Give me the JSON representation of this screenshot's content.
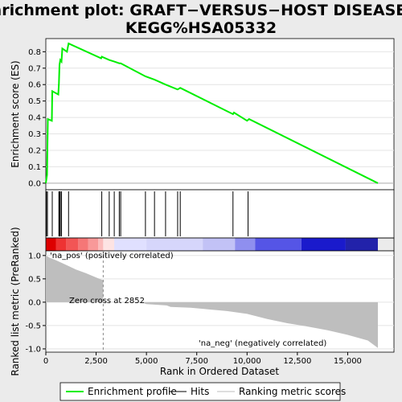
{
  "chart_data": {
    "type": "line",
    "title_line1": "Enrichment plot: GRAFT−VERSUS−HOST DISEASE%",
    "title_line2": "KEGG%HSA05332",
    "es_panel": {
      "ylabel": "Enrichment score (ES)",
      "ylim": [
        -0.04,
        0.88
      ],
      "yticks": [
        0.0,
        0.1,
        0.2,
        0.3,
        0.4,
        0.5,
        0.6,
        0.7,
        0.8
      ],
      "ytick_labels": [
        "0.0",
        "0.1",
        "0.2",
        "0.3",
        "0.4",
        "0.5",
        "0.6",
        "0.7",
        "0.8"
      ],
      "line_color": "#00ee00",
      "points": [
        [
          0,
          0.0
        ],
        [
          60,
          0.05
        ],
        [
          100,
          0.39
        ],
        [
          300,
          0.38
        ],
        [
          320,
          0.56
        ],
        [
          620,
          0.54
        ],
        [
          650,
          0.61
        ],
        [
          680,
          0.72
        ],
        [
          720,
          0.75
        ],
        [
          780,
          0.74
        ],
        [
          820,
          0.82
        ],
        [
          1050,
          0.8
        ],
        [
          1130,
          0.85
        ],
        [
          2750,
          0.76
        ],
        [
          2780,
          0.77
        ],
        [
          3150,
          0.75
        ],
        [
          3400,
          0.74
        ],
        [
          3650,
          0.73
        ],
        [
          3720,
          0.73
        ],
        [
          4950,
          0.65
        ],
        [
          5400,
          0.63
        ],
        [
          5950,
          0.6
        ],
        [
          6550,
          0.57
        ],
        [
          6680,
          0.58
        ],
        [
          9300,
          0.42
        ],
        [
          9350,
          0.43
        ],
        [
          10000,
          0.38
        ],
        [
          10100,
          0.39
        ],
        [
          16500,
          0.0
        ]
      ]
    },
    "hits": [
      30,
      80,
      320,
      650,
      680,
      720,
      780,
      1130,
      2780,
      3150,
      3400,
      3650,
      3720,
      4950,
      5400,
      5950,
      6550,
      6680,
      9300,
      10050
    ],
    "rank_panel": {
      "ylabel": "Ranked list metric (PreRanked)",
      "ylim": [
        -1.07,
        1.1
      ],
      "yticks": [
        1.0,
        0.5,
        0.0,
        -0.5,
        -1.0
      ],
      "ytick_labels": [
        "1.0",
        "0.5",
        "0.0",
        "-0.5",
        "-1.0"
      ],
      "fill_color": "#bebebe",
      "profile": [
        [
          0,
          1.0
        ],
        [
          200,
          0.95
        ],
        [
          500,
          0.9
        ],
        [
          1000,
          0.8
        ],
        [
          1500,
          0.7
        ],
        [
          2000,
          0.62
        ],
        [
          2500,
          0.53
        ],
        [
          2852,
          0.47
        ],
        [
          2853,
          0.0
        ],
        [
          4800,
          -0.01
        ],
        [
          5000,
          -0.04
        ],
        [
          6000,
          -0.07
        ],
        [
          6200,
          -0.1
        ],
        [
          7200,
          -0.12
        ],
        [
          8000,
          -0.15
        ],
        [
          9000,
          -0.19
        ],
        [
          10000,
          -0.25
        ],
        [
          11000,
          -0.36
        ],
        [
          12000,
          -0.45
        ],
        [
          13000,
          -0.52
        ],
        [
          14000,
          -0.6
        ],
        [
          15000,
          -0.7
        ],
        [
          16000,
          -0.82
        ],
        [
          16500,
          -0.98
        ]
      ],
      "zero_cross_label": "Zero cross at 2852",
      "zero_cross_x": 2852,
      "pos_label": "'na_pos' (positively correlated)",
      "neg_label": "'na_neg' (negatively correlated)",
      "pos_color": "#cc0000",
      "neg_color": "#0000cc"
    },
    "heat_segments": [
      {
        "from": 0,
        "to": 500,
        "color": "#dd0000"
      },
      {
        "from": 500,
        "to": 1000,
        "color": "#ee3333"
      },
      {
        "from": 1000,
        "to": 1600,
        "color": "#f25555"
      },
      {
        "from": 1600,
        "to": 2100,
        "color": "#f57777"
      },
      {
        "from": 2100,
        "to": 2600,
        "color": "#f89999"
      },
      {
        "from": 2600,
        "to": 2852,
        "color": "#fbbbbb"
      },
      {
        "from": 2852,
        "to": 3400,
        "color": "#fde3e3"
      },
      {
        "from": 3400,
        "to": 5000,
        "color": "#e0e0ff"
      },
      {
        "from": 5000,
        "to": 7800,
        "color": "#d6d6fb"
      },
      {
        "from": 7800,
        "to": 9400,
        "color": "#c2c2f6"
      },
      {
        "from": 9400,
        "to": 10400,
        "color": "#8f8fef"
      },
      {
        "from": 10400,
        "to": 12700,
        "color": "#5555e6"
      },
      {
        "from": 12700,
        "to": 14900,
        "color": "#1a1acc"
      },
      {
        "from": 14900,
        "to": 16500,
        "color": "#2222aa"
      }
    ],
    "x_axis": {
      "xlabel": "Rank in Ordered Dataset",
      "xlim": [
        0,
        17300
      ],
      "xticks": [
        0,
        2500,
        5000,
        7500,
        10000,
        12500,
        15000
      ],
      "xtick_labels": [
        "0",
        "2,500",
        "5,000",
        "7,500",
        "10,000",
        "12,500",
        "15,000"
      ]
    },
    "legend": {
      "items": [
        {
          "label": "Enrichment profile",
          "color": "#00ee00"
        },
        {
          "label": "Hits",
          "color": "#000000"
        },
        {
          "label": "Ranking metric scores",
          "color": "#bebebe"
        }
      ]
    }
  }
}
